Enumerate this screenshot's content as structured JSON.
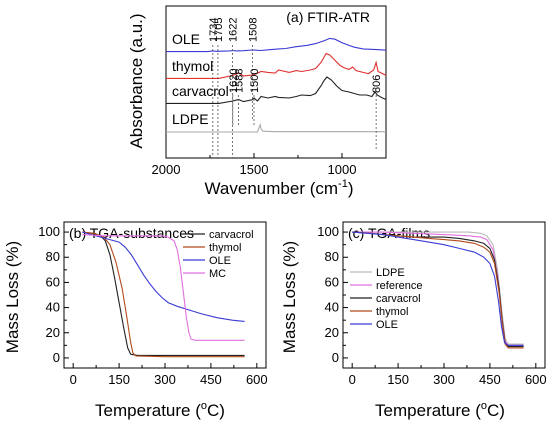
{
  "chart_data": [
    {
      "id": "a",
      "type": "line",
      "title": "(a) FTIR-ATR",
      "xlabel": "Wavenumber (cm⁻¹)",
      "xlabel_main": "Wavenumber (cm",
      "xlabel_sup": "-1",
      "xlabel_tail": ")",
      "ylabel": "Absorbance (a.u.)",
      "xlim": [
        2000,
        750
      ],
      "xticks": [
        "2000",
        "1500",
        "1000"
      ],
      "y_ticks_shown": false,
      "series": [
        {
          "name": "OLE",
          "color": "#3b3bd6",
          "offset": 3,
          "points": [
            [
              2000,
              0.02
            ],
            [
              1760,
              0.02
            ],
            [
              1740,
              0.05
            ],
            [
              1710,
              0.03
            ],
            [
              1640,
              0.05
            ],
            [
              1620,
              0.07
            ],
            [
              1600,
              0.05
            ],
            [
              1560,
              0.06
            ],
            [
              1510,
              0.09
            ],
            [
              1460,
              0.07
            ],
            [
              1420,
              0.1
            ],
            [
              1370,
              0.13
            ],
            [
              1320,
              0.16
            ],
            [
              1260,
              0.24
            ],
            [
              1200,
              0.3
            ],
            [
              1150,
              0.38
            ],
            [
              1100,
              0.52
            ],
            [
              1070,
              0.62
            ],
            [
              1040,
              0.58
            ],
            [
              1000,
              0.42
            ],
            [
              960,
              0.3
            ],
            [
              930,
              0.22
            ],
            [
              880,
              0.14
            ],
            [
              820,
              0.12
            ],
            [
              780,
              0.1
            ],
            [
              750,
              0.08
            ]
          ]
        },
        {
          "name": "thymol",
          "color": "#e03030",
          "offset": 2,
          "points": [
            [
              2000,
              0.02
            ],
            [
              1700,
              0.02
            ],
            [
              1620,
              0.12
            ],
            [
              1585,
              0.2
            ],
            [
              1560,
              0.1
            ],
            [
              1500,
              0.14
            ],
            [
              1460,
              0.25
            ],
            [
              1420,
              0.22
            ],
            [
              1380,
              0.2
            ],
            [
              1360,
              0.3
            ],
            [
              1300,
              0.22
            ],
            [
              1260,
              0.28
            ],
            [
              1230,
              0.25
            ],
            [
              1180,
              0.3
            ],
            [
              1150,
              0.35
            ],
            [
              1120,
              0.55
            ],
            [
              1100,
              0.75
            ],
            [
              1090,
              0.85
            ],
            [
              1070,
              0.8
            ],
            [
              1040,
              0.62
            ],
            [
              1010,
              0.45
            ],
            [
              990,
              0.38
            ],
            [
              960,
              0.32
            ],
            [
              940,
              0.4
            ],
            [
              920,
              0.28
            ],
            [
              880,
              0.22
            ],
            [
              850,
              0.18
            ],
            [
              820,
              0.3
            ],
            [
              806,
              0.55
            ],
            [
              795,
              0.25
            ],
            [
              770,
              0.18
            ],
            [
              750,
              0.12
            ]
          ]
        },
        {
          "name": "carvacrol",
          "color": "#222222",
          "offset": 1,
          "points": [
            [
              2000,
              0.02
            ],
            [
              1700,
              0.02
            ],
            [
              1620,
              0.1
            ],
            [
              1588,
              0.15
            ],
            [
              1560,
              0.08
            ],
            [
              1510,
              0.14
            ],
            [
              1500,
              0.2
            ],
            [
              1480,
              0.1
            ],
            [
              1460,
              0.25
            ],
            [
              1420,
              0.2
            ],
            [
              1380,
              0.25
            ],
            [
              1360,
              0.22
            ],
            [
              1300,
              0.2
            ],
            [
              1260,
              0.25
            ],
            [
              1230,
              0.3
            ],
            [
              1180,
              0.28
            ],
            [
              1150,
              0.35
            ],
            [
              1120,
              0.6
            ],
            [
              1100,
              0.8
            ],
            [
              1085,
              0.9
            ],
            [
              1060,
              0.8
            ],
            [
              1030,
              0.6
            ],
            [
              1000,
              0.45
            ],
            [
              960,
              0.4
            ],
            [
              930,
              0.35
            ],
            [
              900,
              0.3
            ],
            [
              860,
              0.3
            ],
            [
              830,
              0.25
            ],
            [
              812,
              0.4
            ],
            [
              800,
              0.3
            ],
            [
              770,
              0.2
            ],
            [
              750,
              0.15
            ]
          ]
        },
        {
          "name": "LDPE",
          "color": "#aaaaaa",
          "offset": 0,
          "points": [
            [
              2000,
              0.0
            ],
            [
              1480,
              0.0
            ],
            [
              1472,
              0.25
            ],
            [
              1465,
              0.45
            ],
            [
              1460,
              0.2
            ],
            [
              1450,
              0.05
            ],
            [
              1380,
              0.02
            ],
            [
              760,
              0.02
            ],
            [
              750,
              0.02
            ]
          ]
        }
      ],
      "markers": [
        {
          "wavenumber": 1734,
          "label": "1734"
        },
        {
          "wavenumber": 1705,
          "label": "1705"
        },
        {
          "wavenumber": 1622,
          "label": "1622"
        },
        {
          "wavenumber": 1508,
          "label": "1508"
        },
        {
          "wavenumber": 1620,
          "label": "1620"
        },
        {
          "wavenumber": 1588,
          "label": "1588"
        },
        {
          "wavenumber": 1500,
          "label": "1500"
        },
        {
          "wavenumber": 806,
          "label": "806"
        }
      ]
    },
    {
      "id": "b",
      "type": "line",
      "title": "(b) TGA-substances",
      "xlabel": "Temperature (°C)",
      "xlabel_main": "Temperature (",
      "xlabel_sup": "o",
      "xlabel_tail": "C)",
      "ylabel": "Mass Loss (%)",
      "xlim": [
        -30,
        630
      ],
      "ylim": [
        -8,
        108
      ],
      "xticks": [
        0,
        150,
        300,
        450,
        600
      ],
      "yticks": [
        0,
        20,
        40,
        60,
        80,
        100
      ],
      "legend_position": "top-right",
      "series": [
        {
          "name": "carvacrol",
          "color": "#222222",
          "points": [
            [
              30,
              100
            ],
            [
              60,
              99
            ],
            [
              90,
              97
            ],
            [
              105,
              93
            ],
            [
              120,
              82
            ],
            [
              135,
              64
            ],
            [
              150,
              44
            ],
            [
              165,
              24
            ],
            [
              178,
              8
            ],
            [
              188,
              3
            ],
            [
              210,
              2
            ],
            [
              300,
              2
            ],
            [
              450,
              2
            ],
            [
              560,
              2
            ]
          ]
        },
        {
          "name": "thymol",
          "color": "#b34a1c",
          "points": [
            [
              30,
              100
            ],
            [
              70,
              99
            ],
            [
              100,
              96
            ],
            [
              120,
              90
            ],
            [
              140,
              76
            ],
            [
              160,
              55
            ],
            [
              175,
              33
            ],
            [
              188,
              12
            ],
            [
              195,
              4
            ],
            [
              205,
              1.5
            ],
            [
              300,
              1
            ],
            [
              450,
              1
            ],
            [
              560,
              1
            ]
          ]
        },
        {
          "name": "OLE",
          "color": "#3b3bd6",
          "points": [
            [
              30,
              100
            ],
            [
              60,
              98
            ],
            [
              90,
              96
            ],
            [
              120,
              94
            ],
            [
              150,
              92
            ],
            [
              170,
              88
            ],
            [
              190,
              82
            ],
            [
              210,
              74
            ],
            [
              230,
              66
            ],
            [
              250,
              59
            ],
            [
              270,
              53
            ],
            [
              290,
              48
            ],
            [
              310,
              44
            ],
            [
              340,
              41
            ],
            [
              380,
              38
            ],
            [
              420,
              35
            ],
            [
              470,
              32
            ],
            [
              520,
              30
            ],
            [
              560,
              29
            ]
          ]
        },
        {
          "name": "MC",
          "color": "#e070e0",
          "points": [
            [
              30,
              98
            ],
            [
              100,
              97
            ],
            [
              200,
              97
            ],
            [
              290,
              97
            ],
            [
              310,
              96
            ],
            [
              330,
              93
            ],
            [
              340,
              86
            ],
            [
              350,
              72
            ],
            [
              360,
              52
            ],
            [
              370,
              32
            ],
            [
              378,
              20
            ],
            [
              385,
              15
            ],
            [
              400,
              14
            ],
            [
              450,
              14
            ],
            [
              560,
              14
            ]
          ]
        }
      ]
    },
    {
      "id": "c",
      "type": "line",
      "title": "(c) TGA-films",
      "xlabel": "Temperature (°C)",
      "xlabel_main": "Temperature (",
      "xlabel_sup": "o",
      "xlabel_tail": "C)",
      "ylabel": "Mass Loss (%)",
      "xlim": [
        -30,
        630
      ],
      "ylim": [
        -8,
        108
      ],
      "xticks": [
        0,
        150,
        300,
        450,
        600
      ],
      "yticks": [
        0,
        20,
        40,
        60,
        80,
        100
      ],
      "legend_position": "center-left",
      "series": [
        {
          "name": "LDPE",
          "color": "#bbbbbb",
          "points": [
            [
              0,
              100
            ],
            [
              100,
              100
            ],
            [
              200,
              100
            ],
            [
              300,
              100
            ],
            [
              380,
              100
            ],
            [
              420,
              99
            ],
            [
              440,
              97
            ],
            [
              460,
              90
            ],
            [
              475,
              70
            ],
            [
              490,
              35
            ],
            [
              500,
              15
            ],
            [
              510,
              11
            ],
            [
              540,
              11
            ],
            [
              560,
              11
            ]
          ]
        },
        {
          "name": "reference",
          "color": "#e070e0",
          "points": [
            [
              0,
              100
            ],
            [
              100,
              100
            ],
            [
              200,
              99
            ],
            [
              300,
              98
            ],
            [
              380,
              97
            ],
            [
              420,
              96
            ],
            [
              440,
              94
            ],
            [
              460,
              86
            ],
            [
              475,
              65
            ],
            [
              490,
              30
            ],
            [
              500,
              13
            ],
            [
              510,
              10
            ],
            [
              540,
              10
            ],
            [
              560,
              10
            ]
          ]
        },
        {
          "name": "carvacrol",
          "color": "#222222",
          "points": [
            [
              0,
              100
            ],
            [
              60,
              99
            ],
            [
              100,
              98
            ],
            [
              150,
              97
            ],
            [
              200,
              96
            ],
            [
              250,
              96
            ],
            [
              300,
              96
            ],
            [
              350,
              95
            ],
            [
              400,
              93
            ],
            [
              430,
              91
            ],
            [
              450,
              87
            ],
            [
              465,
              78
            ],
            [
              480,
              55
            ],
            [
              490,
              30
            ],
            [
              500,
              12
            ],
            [
              510,
              9
            ],
            [
              540,
              9
            ],
            [
              560,
              9
            ]
          ]
        },
        {
          "name": "thymol",
          "color": "#b34a1c",
          "points": [
            [
              0,
              100
            ],
            [
              60,
              99
            ],
            [
              100,
              98
            ],
            [
              150,
              97
            ],
            [
              200,
              96
            ],
            [
              250,
              95
            ],
            [
              300,
              94
            ],
            [
              350,
              93
            ],
            [
              400,
              91
            ],
            [
              430,
              88
            ],
            [
              450,
              84
            ],
            [
              465,
              75
            ],
            [
              480,
              52
            ],
            [
              490,
              28
            ],
            [
              500,
              11
            ],
            [
              510,
              8
            ],
            [
              540,
              8
            ],
            [
              560,
              8
            ]
          ]
        },
        {
          "name": "OLE",
          "color": "#3b3bd6",
          "points": [
            [
              0,
              100
            ],
            [
              50,
              99
            ],
            [
              100,
              98
            ],
            [
              150,
              96
            ],
            [
              200,
              94
            ],
            [
              250,
              92
            ],
            [
              300,
              90
            ],
            [
              350,
              87
            ],
            [
              400,
              84
            ],
            [
              430,
              80
            ],
            [
              450,
              75
            ],
            [
              465,
              65
            ],
            [
              478,
              45
            ],
            [
              488,
              25
            ],
            [
              498,
              12
            ],
            [
              510,
              10
            ],
            [
              540,
              10
            ],
            [
              560,
              10
            ]
          ]
        }
      ]
    }
  ]
}
